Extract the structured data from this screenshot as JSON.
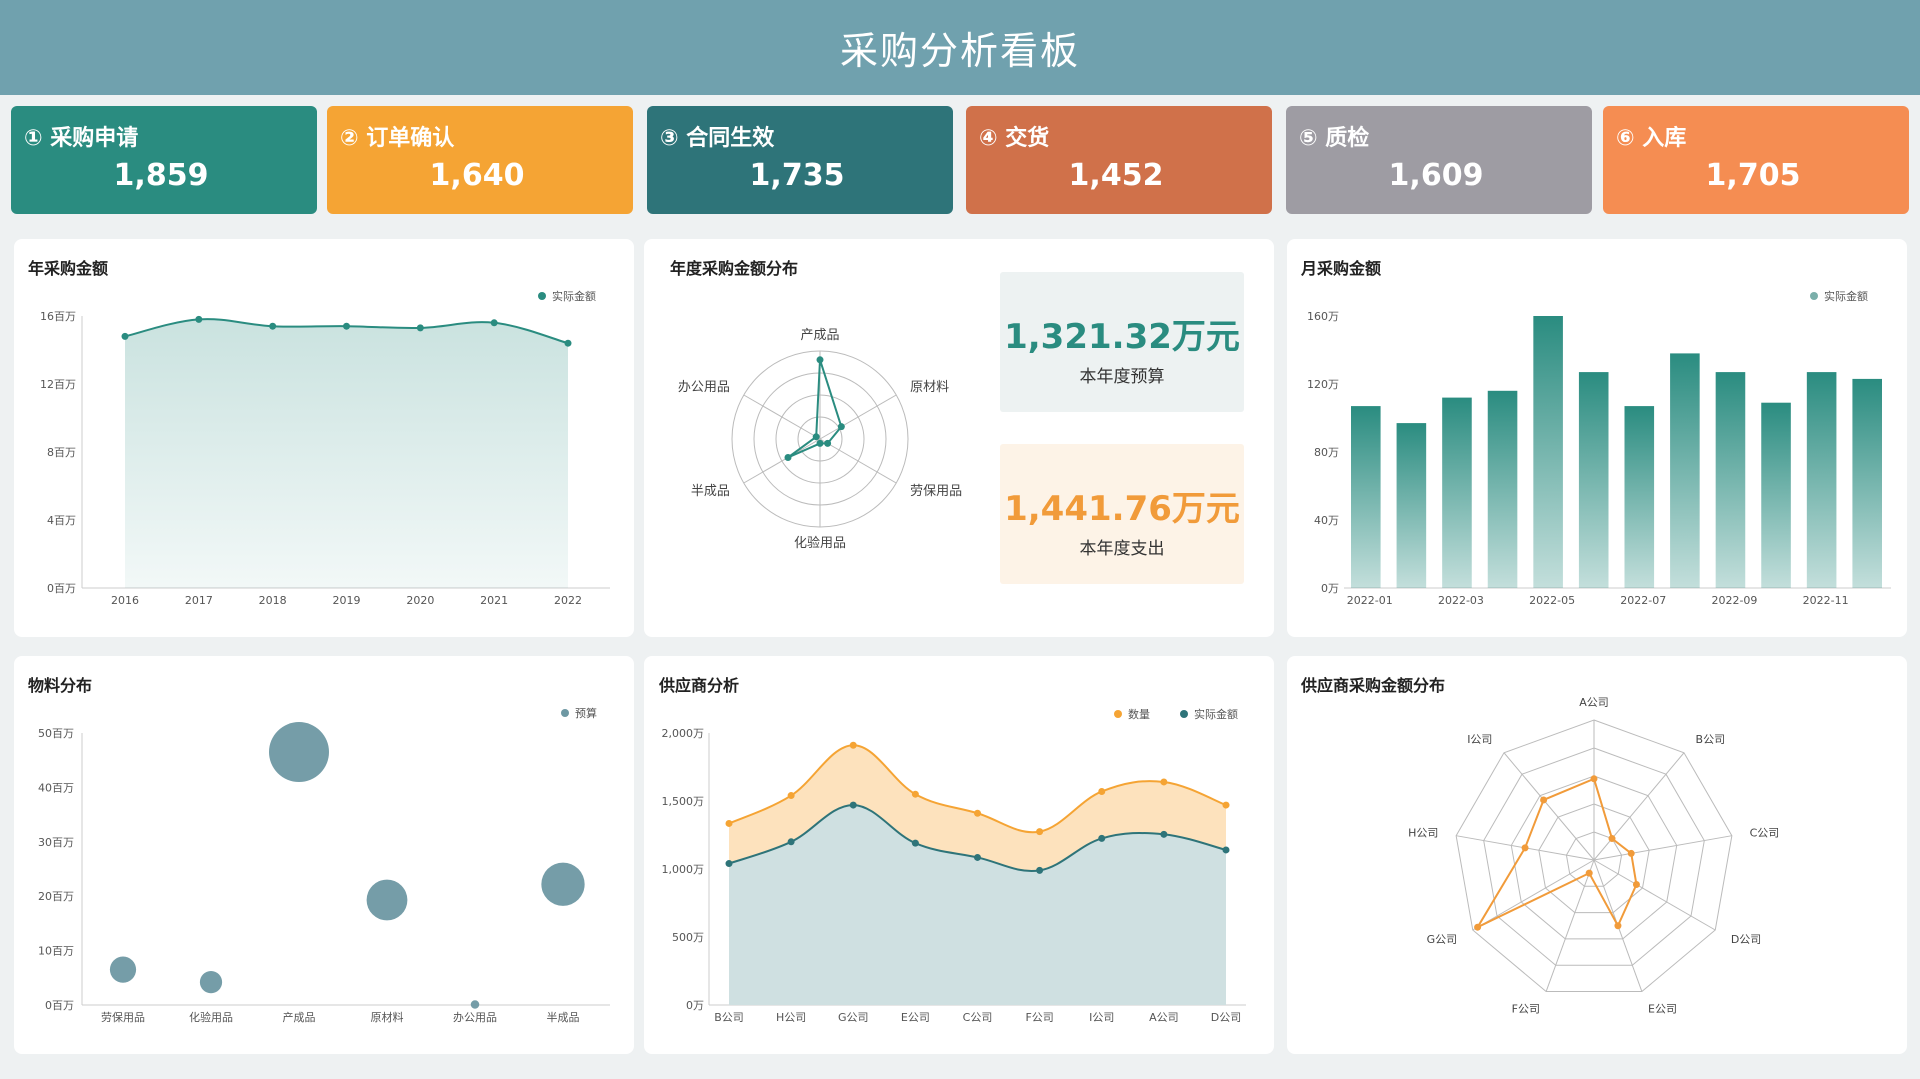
{
  "title": "采购分析看板",
  "kpis": [
    {
      "label": "① 采购申请",
      "value": "1,859",
      "color": "#2a8c80"
    },
    {
      "label": "② 订单确认",
      "value": "1,640",
      "color": "#f5a434"
    },
    {
      "label": "③ 合同生效",
      "value": "1,735",
      "color": "#2e7479"
    },
    {
      "label": "④ 交货",
      "value": "1,452",
      "color": "#d0714a"
    },
    {
      "label": "⑤ 质检",
      "value": "1,609",
      "color": "#9e9ca3"
    },
    {
      "label": "⑥ 入库",
      "value": "1,705",
      "color": "#f58d52"
    }
  ],
  "panels": {
    "annual": {
      "title": "年采购金额"
    },
    "dist": {
      "title": "年度采购金额分布"
    },
    "monthly": {
      "title": "月采购金额"
    },
    "material": {
      "title": "物料分布"
    },
    "supplier": {
      "title": "供应商分析"
    },
    "supplier_radar": {
      "title": "供应商采购金额分布"
    }
  },
  "budget": {
    "value": "1,321.32万元",
    "label": "本年度预算",
    "color": "#2a8c80",
    "bg": "#edf2f2"
  },
  "spend": {
    "value": "1,441.76万元",
    "label": "本年度支出",
    "color": "#f19b3a",
    "bg": "#fdf3e7"
  },
  "chart_data": [
    {
      "id": "annual",
      "type": "area",
      "x": [
        "2016",
        "2017",
        "2018",
        "2019",
        "2020",
        "2021",
        "2022"
      ],
      "series": [
        {
          "name": "实际金额",
          "values": [
            14.8,
            15.8,
            15.4,
            15.4,
            15.3,
            15.6,
            14.4
          ]
        }
      ],
      "ylim": [
        0,
        16
      ],
      "yticks": [
        "0百万",
        "4百万",
        "8百万",
        "12百万",
        "16百万"
      ],
      "legend": "top-right",
      "color": "#2a8c80"
    },
    {
      "id": "dist",
      "type": "radar",
      "indicators": [
        "产成品",
        "原材料",
        "劳保用品",
        "化验用品",
        "半成品",
        "办公用品"
      ],
      "values": [
        0.9,
        0.28,
        0.1,
        0.05,
        0.42,
        0.05
      ],
      "legend": "none",
      "color": "#2a8c80"
    },
    {
      "id": "monthly",
      "type": "bar",
      "categories": [
        "2022-01",
        "2022-02",
        "2022-03",
        "2022-04",
        "2022-05",
        "2022-06",
        "2022-07",
        "2022-08",
        "2022-09",
        "2022-10",
        "2022-11",
        "2022-12"
      ],
      "xticks": [
        "2022-01",
        "2022-03",
        "2022-05",
        "2022-07",
        "2022-09",
        "2022-11"
      ],
      "series": [
        {
          "name": "实际金额",
          "values": [
            107,
            97,
            112,
            116,
            160,
            127,
            107,
            138,
            127,
            109,
            127,
            123
          ]
        }
      ],
      "ylim": [
        0,
        160
      ],
      "yticks": [
        "0万",
        "40万",
        "80万",
        "120万",
        "160万"
      ],
      "legend": "top-right",
      "color": "#2a8c80"
    },
    {
      "id": "material",
      "type": "scatter",
      "categories": [
        "劳保用品",
        "化验用品",
        "产成品",
        "原材料",
        "办公用品",
        "半成品"
      ],
      "series": [
        {
          "name": "预算",
          "values": [
            6.5,
            4.2,
            46.5,
            19.3,
            0.1,
            22.2
          ]
        }
      ],
      "ylim": [
        0,
        50
      ],
      "yticks": [
        "0百万",
        "10百万",
        "20百万",
        "30百万",
        "40百万",
        "50百万"
      ],
      "legend": "top-right",
      "color": "#6e98a3"
    },
    {
      "id": "supplier",
      "type": "area",
      "categories": [
        "B公司",
        "H公司",
        "G公司",
        "E公司",
        "C公司",
        "F公司",
        "I公司",
        "A公司",
        "D公司"
      ],
      "series": [
        {
          "name": "数量",
          "values": [
            1335,
            1540,
            1910,
            1550,
            1410,
            1275,
            1570,
            1640,
            1470
          ],
          "color": "#f5a434"
        },
        {
          "name": "实际金额",
          "values": [
            1040,
            1200,
            1470,
            1190,
            1085,
            990,
            1225,
            1255,
            1140
          ],
          "color": "#2e7479"
        }
      ],
      "ylim": [
        0,
        2000
      ],
      "yticks": [
        "0万",
        "500万",
        "1,000万",
        "1,500万",
        "2,000万"
      ],
      "legend": "top-right"
    },
    {
      "id": "supplier_radar",
      "type": "radar",
      "indicators": [
        "A公司",
        "B公司",
        "C公司",
        "D公司",
        "E公司",
        "F公司",
        "G公司",
        "H公司",
        "I公司"
      ],
      "values": [
        0.58,
        0.2,
        0.27,
        0.35,
        0.5,
        0.1,
        0.96,
        0.5,
        0.56
      ],
      "legend": "none",
      "color": "#f19b3a"
    }
  ]
}
